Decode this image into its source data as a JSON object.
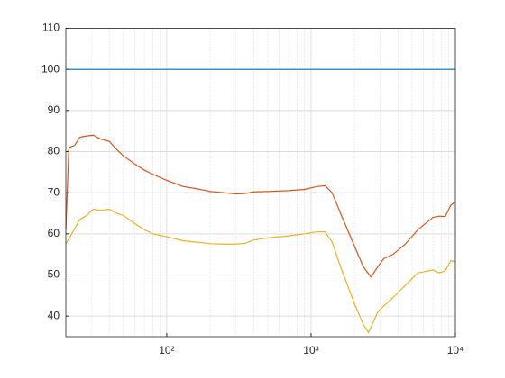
{
  "chart_data": {
    "type": "line",
    "xscale": "log",
    "grid": true,
    "minor_grid": true,
    "xlim": [
      20,
      10000
    ],
    "ylim": [
      35,
      110
    ],
    "xticks": [
      {
        "value": 100,
        "label": "10²"
      },
      {
        "value": 1000,
        "label": "10³"
      },
      {
        "value": 10000,
        "label": "10⁴"
      }
    ],
    "xminorticks": [
      20,
      30,
      40,
      50,
      60,
      70,
      80,
      90,
      200,
      300,
      400,
      500,
      600,
      700,
      800,
      900,
      2000,
      3000,
      4000,
      5000,
      6000,
      7000,
      8000,
      9000
    ],
    "yticks": [
      40,
      50,
      60,
      70,
      80,
      90,
      100,
      110
    ],
    "series": [
      {
        "color": "#0072bd",
        "x": [
          20,
          10000
        ],
        "values": [
          100,
          100
        ]
      },
      {
        "color": "#d95319",
        "x": [
          20,
          21,
          23,
          25,
          28,
          31,
          35,
          40,
          45,
          50,
          60,
          70,
          80,
          100,
          130,
          160,
          200,
          250,
          300,
          350,
          400,
          500,
          700,
          900,
          1100,
          1250,
          1400,
          1600,
          2000,
          2300,
          2600,
          2900,
          3200,
          3700,
          4500,
          5500,
          7000,
          7700,
          8500,
          9300,
          10000
        ],
        "values": [
          61,
          81,
          81.5,
          83.5,
          83.8,
          84,
          83,
          82.5,
          80.5,
          79,
          77,
          75.5,
          74.5,
          73,
          71.5,
          71,
          70.3,
          70,
          69.7,
          69.8,
          70.2,
          70.3,
          70.5,
          70.8,
          71.5,
          71.7,
          70,
          65,
          57,
          52,
          49.5,
          52,
          54,
          55,
          57.5,
          61,
          64,
          64.3,
          64.2,
          67,
          67.8
        ]
      },
      {
        "color": "#edb120",
        "x": [
          20,
          22,
          25,
          28,
          31,
          35,
          40,
          45,
          50,
          60,
          70,
          80,
          100,
          130,
          160,
          200,
          250,
          300,
          350,
          400,
          500,
          700,
          900,
          1100,
          1250,
          1400,
          1600,
          2000,
          2300,
          2500,
          2900,
          3200,
          3700,
          4500,
          5500,
          7000,
          7700,
          8500,
          9300,
          10000
        ],
        "values": [
          57.5,
          60,
          63.5,
          64.5,
          66,
          65.7,
          66,
          65,
          64.5,
          62.5,
          61,
          60,
          59.3,
          58.3,
          58,
          57.6,
          57.5,
          57.5,
          57.7,
          58.5,
          59,
          59.5,
          60,
          60.5,
          60.5,
          58,
          52,
          43,
          38,
          36,
          41,
          42.5,
          44.5,
          47.5,
          50.5,
          51.2,
          50.5,
          51,
          53.5,
          53.2
        ]
      }
    ]
  }
}
